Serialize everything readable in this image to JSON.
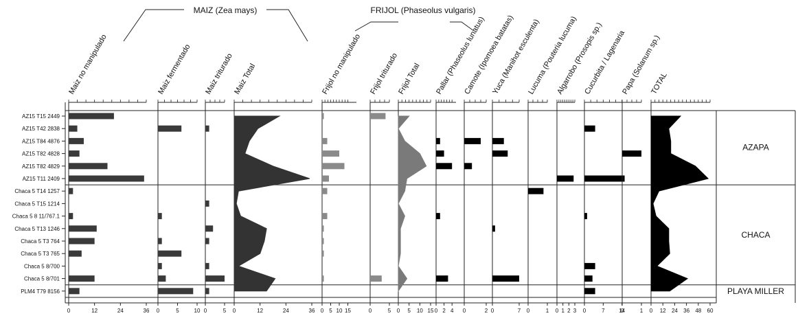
{
  "chart_data": {
    "type": "bar",
    "group_titles": {
      "maiz": "MAIZ (Zea mays)",
      "frijol": "FRIJOL (Phaseolus vulgaris)"
    },
    "samples": [
      "AZ15 T15 2449",
      "AZ15 T42 2838",
      "AZ15 T84 4876",
      "AZ15 T82 4828",
      "AZ15 T82 4829",
      "AZ15 T11 2409",
      "Chaca 5 T14 1257",
      "Chaca 5 T15 1214",
      "Chaca 5 8 11/767.1",
      "Chaca 5 T13 1246",
      "Chaca 5 T3 764",
      "Chaca 5 T3 765",
      "Chaca 5 8/700",
      "Chaca 5 8/701",
      "PLM4 T79 8156"
    ],
    "zones": [
      {
        "label": "AZAPA",
        "from": 0,
        "to": 5
      },
      {
        "label": "CHACA",
        "from": 6,
        "to": 13
      },
      {
        "label": "PLAYA MILLER",
        "from": 14,
        "to": 14
      }
    ],
    "series": [
      {
        "name": "Maiz no manipulado",
        "kind": "bar",
        "color": "#3a3a3a",
        "max": 36,
        "ticks": [
          "0",
          "12",
          "24",
          "36"
        ],
        "tick_values": [
          0,
          12,
          24,
          36
        ],
        "values": [
          21,
          4,
          7,
          5,
          18,
          35,
          2,
          0,
          2,
          13,
          12,
          6,
          0,
          12,
          5
        ]
      },
      {
        "name": "Maiz fermentado",
        "kind": "bar",
        "color": "#3a3a3a",
        "max": 10,
        "ticks": [
          "0",
          "5",
          "10"
        ],
        "tick_values": [
          0,
          5,
          10
        ],
        "values": [
          0,
          6,
          0,
          0,
          0,
          0,
          0,
          0,
          1,
          0,
          1,
          6,
          1,
          2,
          9
        ]
      },
      {
        "name": "Maiz  triturado",
        "kind": "bar",
        "color": "#3a3a3a",
        "max": 5,
        "ticks": [
          "0",
          "5"
        ],
        "tick_values": [
          0,
          5
        ],
        "values": [
          0,
          1,
          0,
          0,
          0,
          0,
          0,
          1,
          0,
          2,
          1,
          0,
          1,
          5,
          1
        ]
      },
      {
        "name": "Maiz Total",
        "kind": "area",
        "color": "#333333",
        "max": 36,
        "ticks": [
          "0",
          "12",
          "24",
          "36"
        ],
        "tick_values": [
          0,
          12,
          24,
          36
        ],
        "values": [
          21,
          11,
          7,
          5,
          18,
          35,
          2,
          1,
          3,
          15,
          14,
          12,
          2,
          19,
          15
        ]
      },
      {
        "name": "Frijol no manipulado",
        "kind": "bar",
        "color": "#8a8a8a",
        "max": 20,
        "ticks": [
          "0",
          "5",
          "10",
          "15"
        ],
        "tick_values": [
          0,
          5,
          10,
          15
        ],
        "values": [
          1,
          0,
          3,
          10,
          13,
          4,
          3,
          0,
          3,
          1,
          1,
          1,
          0,
          1,
          0
        ]
      },
      {
        "name": "Frijol triturado",
        "kind": "bar",
        "color": "#8a8a8a",
        "max": 5,
        "ticks": [
          "0",
          "5"
        ],
        "tick_values": [
          0,
          5
        ],
        "values": [
          4,
          0,
          0,
          0,
          0,
          0,
          0,
          0,
          0,
          0,
          0,
          0,
          0,
          3,
          0
        ]
      },
      {
        "name": "Frijol Total",
        "kind": "area",
        "color": "#7a7a7a",
        "max": 15,
        "ticks": [
          "0",
          "5",
          "10",
          "15"
        ],
        "tick_values": [
          0,
          5,
          10,
          15
        ],
        "values": [
          5,
          0,
          3,
          10,
          13,
          4,
          3,
          0,
          3,
          1,
          1,
          1,
          0,
          4,
          0
        ]
      },
      {
        "name": "Pallar (Phaseolus lunatus)",
        "kind": "bar",
        "color": "#000000",
        "max": 5,
        "ticks": [
          "0",
          "2",
          "4"
        ],
        "tick_values": [
          0,
          2,
          4
        ],
        "values": [
          0,
          0,
          1,
          2,
          4,
          0,
          0,
          0,
          1,
          0,
          0,
          0,
          0,
          3,
          0
        ]
      },
      {
        "name": "Camote (Ipomoea batatas)",
        "kind": "bar",
        "color": "#000000",
        "max": 2,
        "ticks": [
          "0",
          "2"
        ],
        "tick_values": [
          0,
          2
        ],
        "values": [
          0,
          0,
          1.5,
          0,
          0.7,
          0,
          0,
          0,
          0,
          0,
          0,
          0,
          0,
          0,
          0
        ]
      },
      {
        "name": "Yuca (Manihot esculenta)",
        "kind": "bar",
        "color": "#000000",
        "max": 7,
        "ticks": [
          "0",
          "7"
        ],
        "tick_values": [
          0,
          7
        ],
        "values": [
          0,
          0,
          3,
          4,
          0,
          0,
          0,
          0,
          0,
          0.7,
          0,
          0,
          0,
          7,
          0
        ]
      },
      {
        "name": "Lucuma (Pouteria lucuma)",
        "kind": "bar",
        "color": "#000000",
        "max": 1,
        "ticks": [
          "0",
          "1"
        ],
        "tick_values": [
          0,
          1
        ],
        "values": [
          0,
          0,
          0,
          0,
          0,
          0,
          0.8,
          0,
          0,
          0,
          0,
          0,
          0,
          0,
          0
        ]
      },
      {
        "name": "Algarrobo (Prosopis sp.)",
        "kind": "bar",
        "color": "#000000",
        "max": 3,
        "ticks": [
          "0",
          "1",
          "2",
          "3"
        ],
        "tick_values": [
          0,
          1,
          2,
          3
        ],
        "values": [
          0,
          0,
          0,
          0,
          0,
          2.8,
          0,
          0,
          0,
          0,
          0,
          0,
          0,
          0,
          0
        ]
      },
      {
        "name": "Cucurbita / Lagenaria",
        "kind": "bar",
        "color": "#000000",
        "max": 21,
        "ticks": [
          "0",
          "7",
          "14"
        ],
        "tick_values": [
          0,
          7,
          14
        ],
        "values": [
          0,
          4,
          0,
          0,
          0,
          15,
          0,
          0,
          1,
          0,
          0,
          0,
          4,
          3,
          4
        ]
      },
      {
        "name": "Papa (Solanum sp.)",
        "kind": "bar",
        "color": "#000000",
        "max": 1,
        "ticks": [
          "0",
          "1"
        ],
        "tick_values": [
          0,
          1
        ],
        "values": [
          0,
          0,
          0,
          1,
          0,
          0,
          0,
          0,
          0,
          0,
          0,
          0,
          0,
          0,
          0
        ]
      },
      {
        "name": "TOTAL",
        "kind": "area",
        "color": "#000000",
        "max": 60,
        "ticks": [
          "0",
          "12",
          "24",
          "36",
          "48",
          "60"
        ],
        "tick_values": [
          0,
          12,
          24,
          36,
          48,
          60
        ],
        "values": [
          30,
          18,
          20,
          20,
          45,
          58,
          8,
          2,
          5,
          18,
          18,
          19,
          6,
          37,
          19
        ]
      }
    ]
  }
}
